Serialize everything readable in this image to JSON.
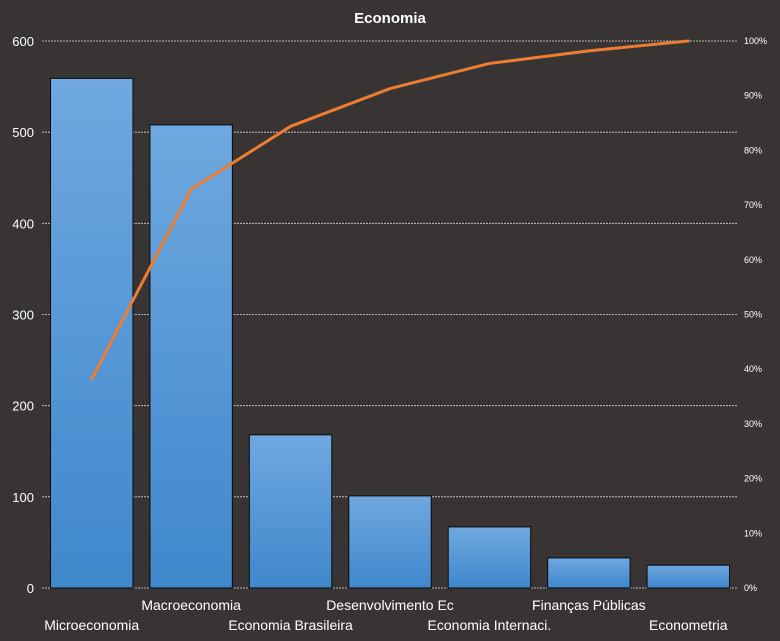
{
  "chart_data": {
    "type": "bar",
    "title": "Economia",
    "categories": [
      "Microeconomia",
      "Macroeconomia",
      "Economia Brasileira",
      "Desenvolvimento Ec",
      "Economia Internaci.",
      "Finanças Públicas",
      "Econometria"
    ],
    "series": [
      {
        "values": [
          559,
          508,
          168,
          101,
          67,
          33,
          25
        ]
      }
    ],
    "cumulative_percent": [
      38.2,
      72.9,
      84.4,
      91.3,
      95.9,
      98.2,
      100
    ],
    "ylim": [
      0,
      600
    ],
    "yticks": [
      "0",
      "100",
      "200",
      "300",
      "400",
      "500",
      "600"
    ],
    "y2lim": [
      0,
      100
    ],
    "y2ticks": [
      "0%",
      "10%",
      "20%",
      "30%",
      "40%",
      "50%",
      "60%",
      "70%",
      "80%",
      "90%",
      "100%"
    ],
    "grid": true,
    "colors": {
      "background": "#383434",
      "bar_top": "#6fa8e0",
      "bar_bottom": "#3f87cc",
      "bar_edge": "#0a0a0a",
      "line": "#ed7d31",
      "grid": "#d8d8d8"
    }
  }
}
